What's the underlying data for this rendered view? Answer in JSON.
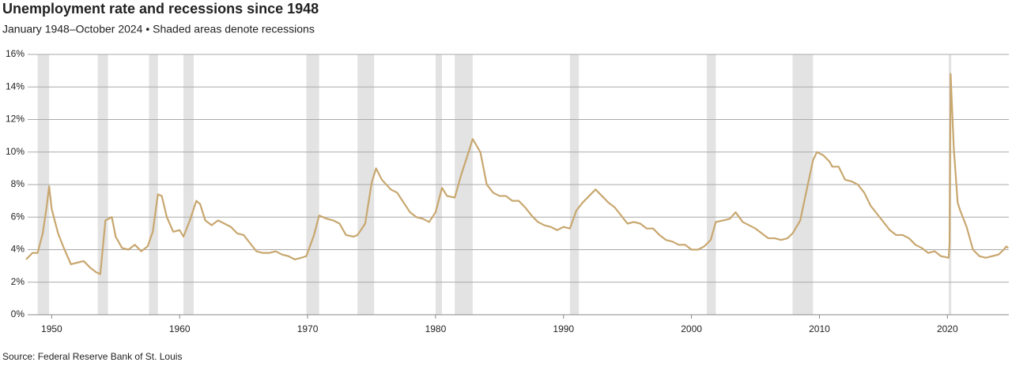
{
  "chart_data": {
    "type": "line",
    "title": "Unemployment rate and recessions since 1948",
    "subtitle": "January 1948–October 2024  •  Shaded areas denote recessions",
    "source": "Source: Federal Reserve Bank of St. Louis",
    "color": "#c8a76f",
    "recession_color": "#e3e3e3",
    "grid": true,
    "xlim": [
      1948,
      2024.8
    ],
    "ylim": [
      0,
      16
    ],
    "xticks": [
      1950,
      1960,
      1970,
      1980,
      1990,
      2000,
      2010,
      2020
    ],
    "yticks": [
      {
        "value": 0,
        "label": "0%"
      },
      {
        "value": 2,
        "label": "2%"
      },
      {
        "value": 4,
        "label": "4%"
      },
      {
        "value": 6,
        "label": "6%"
      },
      {
        "value": 8,
        "label": "8%"
      },
      {
        "value": 10,
        "label": "10%"
      },
      {
        "value": 12,
        "label": "12%"
      },
      {
        "value": 14,
        "label": "14%"
      },
      {
        "value": 16,
        "label": "16%"
      }
    ],
    "recessions": [
      [
        1948.9,
        1949.8
      ],
      [
        1953.6,
        1954.4
      ],
      [
        1957.6,
        1958.3
      ],
      [
        1960.3,
        1961.1
      ],
      [
        1969.9,
        1970.9
      ],
      [
        1973.9,
        1975.2
      ],
      [
        1980.0,
        1980.5
      ],
      [
        1981.5,
        1982.9
      ],
      [
        1990.5,
        1991.2
      ],
      [
        2001.2,
        2001.9
      ],
      [
        2007.9,
        2009.5
      ],
      [
        2020.1,
        2020.3
      ]
    ],
    "x": [
      1948.0,
      1948.5,
      1948.9,
      1949.3,
      1949.6,
      1949.8,
      1950.0,
      1950.5,
      1950.9,
      1951.5,
      1952.0,
      1952.5,
      1953.0,
      1953.5,
      1953.8,
      1954.2,
      1954.7,
      1955.0,
      1955.5,
      1956.0,
      1956.5,
      1957.0,
      1957.5,
      1957.9,
      1958.3,
      1958.6,
      1959.0,
      1959.5,
      1960.0,
      1960.3,
      1960.8,
      1961.3,
      1961.6,
      1962.0,
      1962.5,
      1963.0,
      1963.5,
      1964.0,
      1964.5,
      1965.0,
      1965.5,
      1966.0,
      1966.5,
      1967.0,
      1967.5,
      1968.0,
      1968.5,
      1969.0,
      1969.5,
      1969.9,
      1970.5,
      1970.9,
      1971.5,
      1972.0,
      1972.5,
      1973.0,
      1973.6,
      1973.9,
      1974.5,
      1975.0,
      1975.35,
      1975.8,
      1976.5,
      1977.0,
      1977.5,
      1978.0,
      1978.5,
      1979.0,
      1979.5,
      1980.0,
      1980.5,
      1980.9,
      1981.5,
      1982.0,
      1982.5,
      1982.9,
      1983.5,
      1984.0,
      1984.5,
      1985.0,
      1985.5,
      1986.0,
      1986.5,
      1987.0,
      1987.5,
      1988.0,
      1988.5,
      1989.0,
      1989.5,
      1990.0,
      1990.5,
      1991.0,
      1991.5,
      1992.0,
      1992.5,
      1993.0,
      1993.5,
      1994.0,
      1994.5,
      1995.0,
      1995.5,
      1996.0,
      1996.5,
      1997.0,
      1997.5,
      1998.0,
      1998.5,
      1999.0,
      1999.5,
      2000.0,
      2000.5,
      2001.0,
      2001.5,
      2001.9,
      2002.5,
      2003.0,
      2003.45,
      2004.0,
      2004.5,
      2005.0,
      2005.5,
      2006.0,
      2006.5,
      2007.0,
      2007.5,
      2007.9,
      2008.5,
      2008.9,
      2009.5,
      2009.8,
      2010.3,
      2010.8,
      2011.0,
      2011.5,
      2012.0,
      2012.5,
      2013.0,
      2013.5,
      2014.0,
      2014.5,
      2015.0,
      2015.5,
      2016.0,
      2016.5,
      2017.0,
      2017.5,
      2018.0,
      2018.5,
      2019.0,
      2019.5,
      2020.1,
      2020.17,
      2020.25,
      2020.5,
      2020.8,
      2021.0,
      2021.5,
      2022.0,
      2022.5,
      2023.0,
      2023.5,
      2024.0,
      2024.4,
      2024.6,
      2024.75
    ],
    "values": [
      3.4,
      3.8,
      3.8,
      5.0,
      6.6,
      7.9,
      6.5,
      5.0,
      4.2,
      3.1,
      3.2,
      3.3,
      2.9,
      2.6,
      2.5,
      5.8,
      6.0,
      4.8,
      4.1,
      4.0,
      4.3,
      3.9,
      4.2,
      5.1,
      7.4,
      7.3,
      6.0,
      5.1,
      5.2,
      4.8,
      5.8,
      7.0,
      6.8,
      5.8,
      5.5,
      5.8,
      5.6,
      5.4,
      5.0,
      4.9,
      4.4,
      3.9,
      3.8,
      3.8,
      3.9,
      3.7,
      3.6,
      3.4,
      3.5,
      3.6,
      4.9,
      6.1,
      5.9,
      5.8,
      5.6,
      4.9,
      4.8,
      4.9,
      5.6,
      8.1,
      9.0,
      8.3,
      7.7,
      7.5,
      6.9,
      6.3,
      6.0,
      5.9,
      5.7,
      6.3,
      7.8,
      7.3,
      7.2,
      8.6,
      9.8,
      10.8,
      10.0,
      8.0,
      7.5,
      7.3,
      7.3,
      7.0,
      7.0,
      6.6,
      6.1,
      5.7,
      5.5,
      5.4,
      5.2,
      5.4,
      5.3,
      6.4,
      6.9,
      7.3,
      7.7,
      7.3,
      6.9,
      6.6,
      6.1,
      5.6,
      5.7,
      5.6,
      5.3,
      5.3,
      4.9,
      4.6,
      4.5,
      4.3,
      4.3,
      4.0,
      4.0,
      4.2,
      4.6,
      5.7,
      5.8,
      5.9,
      6.3,
      5.7,
      5.5,
      5.3,
      5.0,
      4.7,
      4.7,
      4.6,
      4.7,
      5.0,
      5.8,
      7.3,
      9.5,
      10.0,
      9.8,
      9.4,
      9.1,
      9.1,
      8.3,
      8.2,
      8.0,
      7.5,
      6.7,
      6.2,
      5.7,
      5.2,
      4.9,
      4.9,
      4.7,
      4.3,
      4.1,
      3.8,
      3.9,
      3.6,
      3.5,
      4.4,
      14.8,
      10.2,
      6.9,
      6.4,
      5.4,
      4.0,
      3.6,
      3.5,
      3.6,
      3.7,
      4.0,
      4.2,
      4.1
    ]
  }
}
